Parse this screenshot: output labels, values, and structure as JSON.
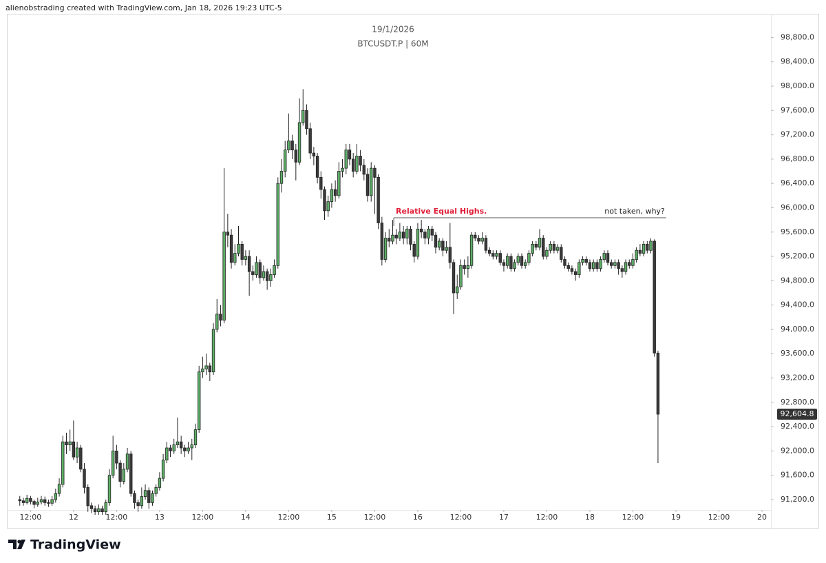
{
  "header": "alienobstrading created with TradingView.com, Jan 18, 2026 19:23 UTC-5",
  "footer": {
    "brand": "TradingView"
  },
  "chart_data": {
    "type": "candlestick",
    "title": "19/1/2026",
    "subtitle": "BTCUSDT.P | 60M",
    "up_color": "#5dad67",
    "down_color": "#3a3a3a",
    "wick_color": "#222222",
    "grid": false,
    "xlim": [
      5.4,
      218.5
    ],
    "ylim": [
      91030,
      99190
    ],
    "xticks": [
      {
        "value": 12,
        "label": "12:00"
      },
      {
        "value": 24,
        "label": "12"
      },
      {
        "value": 36,
        "label": "12:00"
      },
      {
        "value": 48,
        "label": "13"
      },
      {
        "value": 60,
        "label": "12:00"
      },
      {
        "value": 72,
        "label": "14"
      },
      {
        "value": 84,
        "label": "12:00"
      },
      {
        "value": 96,
        "label": "15"
      },
      {
        "value": 108,
        "label": "12:00"
      },
      {
        "value": 120,
        "label": "16"
      },
      {
        "value": 132,
        "label": "12:00"
      },
      {
        "value": 144,
        "label": "17"
      },
      {
        "value": 156,
        "label": "12:00"
      },
      {
        "value": 168,
        "label": "18"
      },
      {
        "value": 180,
        "label": "12:00"
      },
      {
        "value": 192,
        "label": "19"
      },
      {
        "value": 204,
        "label": "12:00"
      },
      {
        "value": 216,
        "label": "20"
      }
    ],
    "yticks": [
      {
        "value": 91200,
        "label": "91,200.0"
      },
      {
        "value": 91600,
        "label": "91,600.0"
      },
      {
        "value": 92000,
        "label": "92,000.0"
      },
      {
        "value": 92400,
        "label": "92,400.0"
      },
      {
        "value": 92800,
        "label": "92,800.0"
      },
      {
        "value": 93200,
        "label": "93,200.0"
      },
      {
        "value": 93600,
        "label": "93,600.0"
      },
      {
        "value": 94000,
        "label": "94,000.0"
      },
      {
        "value": 94400,
        "label": "94,400.0"
      },
      {
        "value": 94800,
        "label": "94,800.0"
      },
      {
        "value": 95200,
        "label": "95,200.0"
      },
      {
        "value": 95600,
        "label": "95,600.0"
      },
      {
        "value": 96000,
        "label": "96,000.0"
      },
      {
        "value": 96400,
        "label": "96,400.0"
      },
      {
        "value": 96800,
        "label": "96,800.0"
      },
      {
        "value": 97200,
        "label": "97,200.0"
      },
      {
        "value": 97600,
        "label": "97,600.0"
      },
      {
        "value": 98000,
        "label": "98,000.0"
      },
      {
        "value": 98400,
        "label": "98,400.0"
      },
      {
        "value": 98800,
        "label": "98,800.0"
      }
    ],
    "last_price": {
      "value": 92604.8,
      "label": "92,604.8"
    },
    "annotation": {
      "label": "Relative Equal Highs.",
      "comment": "not taken, why?",
      "y": 95835,
      "x": [
        113.3,
        189.3
      ],
      "color": "#e0203a"
    },
    "x": [
      9,
      10,
      11,
      12,
      13,
      14,
      15,
      16,
      17,
      18,
      19,
      20,
      21,
      22,
      23,
      24,
      25,
      26,
      27,
      28,
      29,
      30,
      31,
      32,
      33,
      34,
      35,
      36,
      37,
      38,
      39,
      40,
      41,
      42,
      43,
      44,
      45,
      46,
      47,
      48,
      49,
      50,
      51,
      52,
      53,
      54,
      55,
      56,
      57,
      58,
      59,
      60,
      61,
      62,
      63,
      64,
      65,
      66,
      67,
      68,
      69,
      70,
      71,
      72,
      73,
      74,
      75,
      76,
      77,
      78,
      79,
      80,
      81,
      82,
      83,
      84,
      85,
      86,
      87,
      88,
      89,
      90,
      91,
      92,
      93,
      94,
      95,
      96,
      97,
      98,
      99,
      100,
      101,
      102,
      103,
      104,
      105,
      106,
      107,
      108,
      109,
      110,
      111,
      112,
      113,
      114,
      115,
      116,
      117,
      118,
      119,
      120,
      121,
      122,
      123,
      124,
      125,
      126,
      127,
      128,
      129,
      130,
      131,
      132,
      133,
      134,
      135,
      136,
      137,
      138,
      139,
      140,
      141,
      142,
      143,
      144,
      145,
      146,
      147,
      148,
      149,
      150,
      151,
      152,
      153,
      154,
      155,
      156,
      157,
      158,
      159,
      160,
      161,
      162,
      163,
      164,
      165,
      166,
      167,
      168,
      169,
      170,
      171,
      172,
      173,
      174,
      175,
      176,
      177,
      178,
      179,
      180,
      181,
      182,
      183,
      184,
      185,
      186,
      187
    ],
    "open": [
      91200,
      91180,
      91150,
      91220,
      91170,
      91120,
      91160,
      91200,
      91150,
      91140,
      91200,
      91300,
      91450,
      92150,
      92100,
      92150,
      91900,
      92050,
      91700,
      91400,
      91100,
      91050,
      91000,
      91050,
      91000,
      91150,
      91600,
      92000,
      91800,
      91500,
      91700,
      91950,
      91300,
      91150,
      91100,
      91250,
      91350,
      91150,
      91300,
      91400,
      91550,
      91850,
      92050,
      92000,
      92100,
      92150,
      92050,
      92000,
      92050,
      92100,
      92350,
      93300,
      93350,
      93400,
      93300,
      94000,
      94250,
      94150,
      95600,
      95550,
      95100,
      95250,
      95400,
      95150,
      95200,
      94950,
      94900,
      95100,
      94850,
      94950,
      94800,
      94900,
      95050,
      96400,
      96600,
      96950,
      97100,
      96950,
      96750,
      97400,
      97600,
      97300,
      96900,
      96850,
      96500,
      96300,
      95950,
      96100,
      96300,
      96200,
      96600,
      96650,
      96950,
      96800,
      96600,
      96850,
      96700,
      96550,
      96200,
      96650,
      96500,
      95750,
      95150,
      95500,
      95450,
      95550,
      95500,
      95600,
      95500,
      95650,
      95400,
      95200,
      95650,
      95600,
      95500,
      95650,
      95550,
      95350,
      95450,
      95300,
      95350,
      95100,
      94600,
      94700,
      95050,
      95000,
      95050,
      95550,
      95500,
      95450,
      95500,
      95300,
      95250,
      95200,
      95250,
      95100,
      95050,
      95200,
      95000,
      95100,
      95200,
      95050,
      95100,
      95250,
      95400,
      95350,
      95500,
      95200,
      95300,
      95400,
      95300,
      95350,
      95150,
      95050,
      95000,
      94950,
      94900,
      95100,
      95150,
      95100,
      95000,
      95100,
      95000,
      95150,
      95250,
      95100,
      95050,
      95100,
      95000,
      94950,
      95100,
      95050,
      95150,
      95300,
      95250,
      95400,
      95300,
      95450,
      93610
    ],
    "high": [
      91260,
      91230,
      91280,
      91260,
      91200,
      91230,
      91260,
      91250,
      91200,
      91260,
      91380,
      91550,
      92250,
      92300,
      92350,
      92500,
      92150,
      92100,
      91800,
      91450,
      91150,
      91100,
      91120,
      91100,
      91200,
      91700,
      92250,
      92100,
      91850,
      91800,
      92050,
      92000,
      91350,
      91200,
      91400,
      91450,
      91400,
      91350,
      91450,
      91650,
      91950,
      92150,
      92100,
      92200,
      92550,
      92250,
      92100,
      92150,
      92200,
      92450,
      93400,
      93550,
      93600,
      93450,
      94100,
      94500,
      94400,
      96650,
      95900,
      95650,
      95400,
      95700,
      95450,
      95300,
      95300,
      95050,
      95200,
      95150,
      95050,
      95000,
      95000,
      95150,
      96500,
      96800,
      97100,
      97550,
      97200,
      97050,
      97800,
      97950,
      97700,
      97400,
      97000,
      96900,
      96600,
      96350,
      96200,
      96400,
      96450,
      96750,
      96800,
      97050,
      97050,
      96900,
      97050,
      96950,
      96800,
      96650,
      96750,
      96700,
      96550,
      95850,
      95600,
      95650,
      95800,
      95650,
      95750,
      95700,
      95700,
      95700,
      95450,
      95750,
      95800,
      95650,
      95700,
      95700,
      95600,
      95500,
      95500,
      95450,
      95750,
      95150,
      94900,
      95150,
      95150,
      95200,
      95600,
      95600,
      95550,
      95600,
      95550,
      95350,
      95300,
      95300,
      95300,
      95150,
      95250,
      95250,
      95150,
      95250,
      95250,
      95150,
      95300,
      95450,
      95450,
      95650,
      95550,
      95350,
      95450,
      95450,
      95400,
      95400,
      95200,
      95100,
      95050,
      95000,
      95150,
      95200,
      95200,
      95150,
      95150,
      95150,
      95200,
      95300,
      95300,
      95150,
      95150,
      95150,
      95050,
      95150,
      95150,
      95250,
      95350,
      95400,
      95450,
      95450,
      95500,
      95480,
      93650
    ],
    "low": [
      91100,
      91100,
      91120,
      91120,
      91060,
      91080,
      91120,
      91100,
      91080,
      91100,
      91150,
      91250,
      91400,
      91950,
      92000,
      91850,
      91800,
      91650,
      91300,
      91000,
      90980,
      90950,
      90950,
      90950,
      90950,
      91100,
      91550,
      91700,
      91400,
      91450,
      91650,
      91250,
      91050,
      91000,
      91050,
      91200,
      91050,
      91100,
      91250,
      91350,
      91500,
      91800,
      91900,
      91950,
      92050,
      91950,
      91900,
      91950,
      91850,
      92050,
      92300,
      93200,
      93250,
      93150,
      93250,
      93950,
      94050,
      94100,
      95350,
      95000,
      95050,
      95200,
      95050,
      95050,
      94550,
      94800,
      94850,
      94750,
      94800,
      94650,
      94700,
      94850,
      95000,
      96250,
      96500,
      96900,
      96800,
      96450,
      96700,
      97350,
      97200,
      96800,
      96700,
      96400,
      96150,
      95800,
      95850,
      96000,
      96100,
      96150,
      96500,
      96550,
      96700,
      96500,
      96550,
      96600,
      96450,
      96100,
      96100,
      95900,
      95650,
      95050,
      95100,
      95350,
      95400,
      95400,
      95450,
      95400,
      95400,
      95300,
      95100,
      95150,
      95500,
      95400,
      95400,
      95450,
      95250,
      95300,
      95200,
      95250,
      95000,
      94250,
      94500,
      94650,
      94900,
      94850,
      95000,
      95450,
      95400,
      95400,
      95250,
      95200,
      95150,
      95150,
      95050,
      94950,
      95000,
      94950,
      94950,
      95050,
      95000,
      95000,
      95050,
      95200,
      95300,
      95300,
      95150,
      95150,
      95250,
      95250,
      95250,
      95100,
      95000,
      94950,
      94900,
      94800,
      94850,
      95050,
      95050,
      94950,
      94950,
      94950,
      94950,
      95100,
      95050,
      95000,
      95000,
      94900,
      94850,
      94900,
      95000,
      95000,
      95100,
      95200,
      95200,
      95250,
      95250,
      93550,
      91800
    ],
    "close": [
      91180,
      91150,
      91220,
      91170,
      91120,
      91160,
      91200,
      91150,
      91140,
      91200,
      91300,
      91450,
      92150,
      92100,
      92150,
      91900,
      92050,
      91700,
      91400,
      91100,
      91050,
      91000,
      91050,
      91000,
      91150,
      91600,
      92000,
      91800,
      91500,
      91700,
      91950,
      91300,
      91150,
      91100,
      91250,
      91350,
      91150,
      91300,
      91400,
      91550,
      91850,
      92050,
      92000,
      92100,
      92150,
      92050,
      92000,
      92050,
      92100,
      92350,
      93300,
      93350,
      93400,
      93300,
      94000,
      94250,
      94150,
      95600,
      95550,
      95100,
      95250,
      95400,
      95150,
      95200,
      94950,
      94900,
      95100,
      94850,
      94950,
      94800,
      94900,
      95050,
      96400,
      96600,
      96950,
      97100,
      96950,
      96750,
      97400,
      97600,
      97300,
      96900,
      96850,
      96500,
      96300,
      95950,
      96100,
      96300,
      96200,
      96600,
      96650,
      96950,
      96800,
      96600,
      96850,
      96700,
      96550,
      96200,
      96650,
      96500,
      95750,
      95150,
      95500,
      95450,
      95550,
      95500,
      95600,
      95500,
      95650,
      95400,
      95200,
      95650,
      95600,
      95500,
      95650,
      95550,
      95350,
      95450,
      95300,
      95350,
      95100,
      94600,
      94700,
      95050,
      95000,
      95050,
      95550,
      95500,
      95450,
      95500,
      95300,
      95250,
      95200,
      95250,
      95100,
      95050,
      95200,
      95000,
      95100,
      95200,
      95050,
      95100,
      95250,
      95400,
      95350,
      95500,
      95200,
      95300,
      95400,
      95300,
      95350,
      95150,
      95050,
      95000,
      94950,
      94900,
      95100,
      95150,
      95100,
      95000,
      95100,
      95000,
      95150,
      95250,
      95100,
      95050,
      95100,
      95000,
      94950,
      95100,
      95050,
      95150,
      95300,
      95250,
      95400,
      95300,
      95450,
      93610,
      92604.8
    ]
  }
}
